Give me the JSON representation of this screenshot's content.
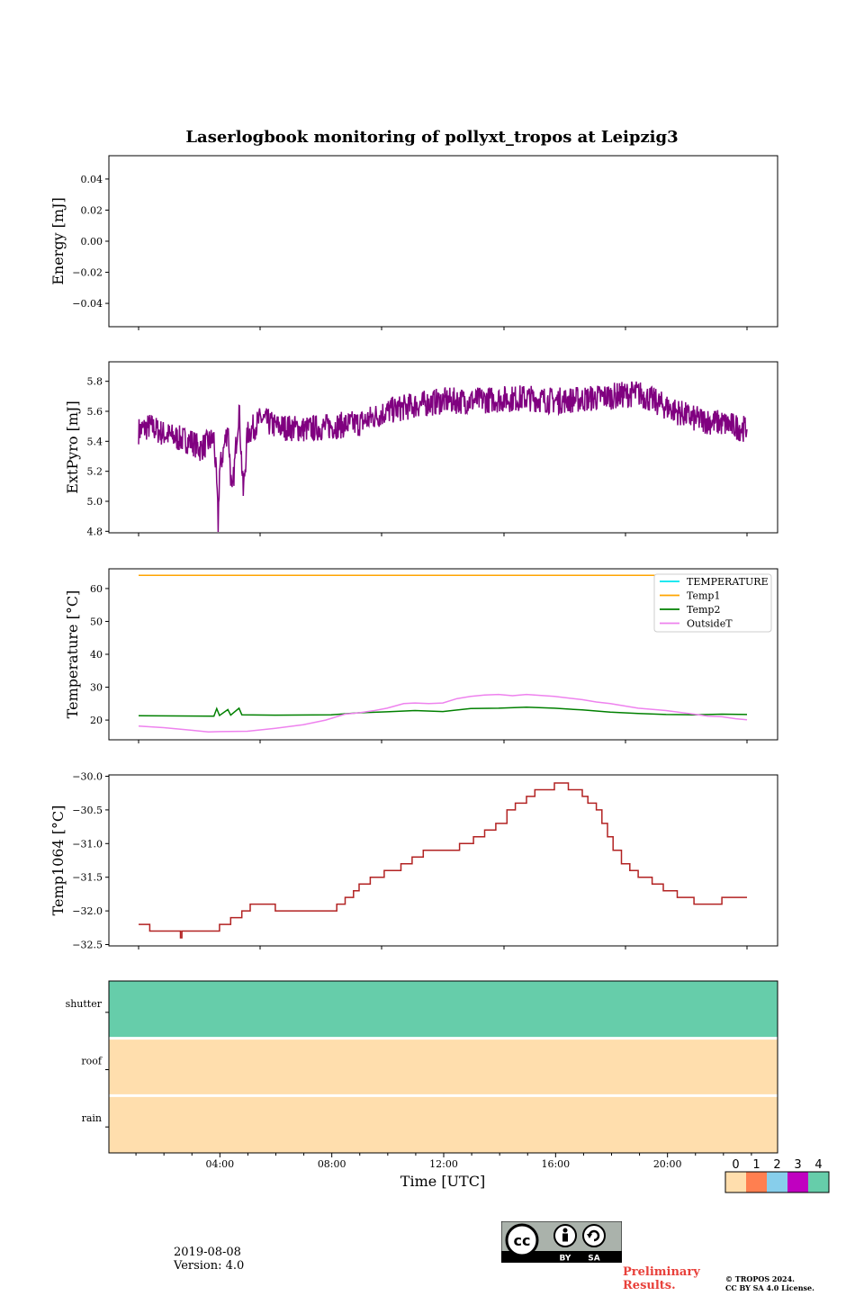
{
  "chart_data": {
    "type": "line",
    "title": "Laserlogbook monitoring of pollyxt_tropos at Leipzig3",
    "xlabel": "Time [UTC]",
    "x_ticks": [
      "04:00",
      "08:00",
      "12:00",
      "16:00",
      "20:00"
    ],
    "x_range_hours": [
      0,
      24
    ],
    "panels": [
      {
        "name": "energy",
        "ylabel": "Energy [mJ]",
        "ylim": [
          -0.055,
          0.055
        ],
        "yticks": [
          "0.04",
          "0.02",
          "0.00",
          "−0.02",
          "−0.04"
        ],
        "ytick_values": [
          0.04,
          0.02,
          0.0,
          -0.02,
          -0.04
        ],
        "series": []
      },
      {
        "name": "extpyro",
        "ylabel": "ExtPyro [mJ]",
        "ylim": [
          4.79,
          5.93
        ],
        "yticks": [
          "5.8",
          "5.6",
          "5.4",
          "5.2",
          "5.0",
          "4.8"
        ],
        "ytick_values": [
          5.8,
          5.6,
          5.4,
          5.2,
          5.0,
          4.8
        ],
        "series": [
          {
            "name": "ExtPyro",
            "color": "#800080",
            "points": [
              [
                1.1,
                5.47
              ],
              [
                1.5,
                5.5
              ],
              [
                2.0,
                5.45
              ],
              [
                2.5,
                5.42
              ],
              [
                3.0,
                5.4
              ],
              [
                3.3,
                5.35
              ],
              [
                3.8,
                5.42
              ],
              [
                3.9,
                5.1
              ],
              [
                3.95,
                4.85
              ],
              [
                4.0,
                5.2
              ],
              [
                4.3,
                5.5
              ],
              [
                4.45,
                5.02
              ],
              [
                4.6,
                5.4
              ],
              [
                4.7,
                5.62
              ],
              [
                4.85,
                5.05
              ],
              [
                5.0,
                5.45
              ],
              [
                5.5,
                5.55
              ],
              [
                6.0,
                5.5
              ],
              [
                7.0,
                5.48
              ],
              [
                8.0,
                5.5
              ],
              [
                9.0,
                5.52
              ],
              [
                10.0,
                5.6
              ],
              [
                11.0,
                5.64
              ],
              [
                12.0,
                5.67
              ],
              [
                13.0,
                5.67
              ],
              [
                14.0,
                5.68
              ],
              [
                15.0,
                5.69
              ],
              [
                16.0,
                5.67
              ],
              [
                17.0,
                5.68
              ],
              [
                18.0,
                5.7
              ],
              [
                19.0,
                5.72
              ],
              [
                20.0,
                5.63
              ],
              [
                21.0,
                5.55
              ],
              [
                22.0,
                5.52
              ],
              [
                22.9,
                5.48
              ]
            ]
          }
        ]
      },
      {
        "name": "temperature",
        "ylabel": "Temperature [°C]",
        "ylim": [
          14,
          66
        ],
        "yticks": [
          "60",
          "50",
          "40",
          "30",
          "20"
        ],
        "ytick_values": [
          60,
          50,
          40,
          30,
          20
        ],
        "legend": [
          "TEMPERATURE",
          "Temp1",
          "Temp2",
          "OutsideT"
        ],
        "legend_colors": [
          "#00e5ee",
          "#ffa500",
          "#008000",
          "#ee82ee"
        ],
        "series": [
          {
            "name": "TEMPERATURE",
            "color": "#00e5ee",
            "points": []
          },
          {
            "name": "Temp1",
            "color": "#ffa500",
            "points": [
              [
                1.1,
                64
              ],
              [
                22.9,
                64
              ]
            ]
          },
          {
            "name": "Temp2",
            "color": "#008000",
            "points": [
              [
                1.1,
                21.3
              ],
              [
                3.8,
                21.2
              ],
              [
                3.9,
                23.5
              ],
              [
                4.0,
                21.4
              ],
              [
                4.3,
                23.2
              ],
              [
                4.4,
                21.5
              ],
              [
                4.7,
                23.6
              ],
              [
                4.8,
                21.6
              ],
              [
                6.0,
                21.5
              ],
              [
                8.0,
                21.6
              ],
              [
                9.0,
                22.2
              ],
              [
                10.0,
                22.5
              ],
              [
                11.0,
                22.9
              ],
              [
                12.0,
                22.6
              ],
              [
                13.0,
                23.5
              ],
              [
                14.0,
                23.6
              ],
              [
                15.0,
                23.9
              ],
              [
                16.0,
                23.6
              ],
              [
                17.0,
                23.1
              ],
              [
                18.0,
                22.4
              ],
              [
                19.0,
                22.0
              ],
              [
                20.0,
                21.7
              ],
              [
                21.0,
                21.6
              ],
              [
                22.0,
                21.8
              ],
              [
                22.9,
                21.7
              ]
            ]
          },
          {
            "name": "OutsideT",
            "color": "#ee82ee",
            "points": [
              [
                1.1,
                18.2
              ],
              [
                2.0,
                17.7
              ],
              [
                3.0,
                16.9
              ],
              [
                3.6,
                16.4
              ],
              [
                4.0,
                16.5
              ],
              [
                5.0,
                16.6
              ],
              [
                6.0,
                17.5
              ],
              [
                7.0,
                18.6
              ],
              [
                7.8,
                20.0
              ],
              [
                8.5,
                21.8
              ],
              [
                9.0,
                22.2
              ],
              [
                9.5,
                22.8
              ],
              [
                10.0,
                23.6
              ],
              [
                10.6,
                25.0
              ],
              [
                11.0,
                25.2
              ],
              [
                11.5,
                25.0
              ],
              [
                12.0,
                25.2
              ],
              [
                12.5,
                26.5
              ],
              [
                13.0,
                27.2
              ],
              [
                13.5,
                27.6
              ],
              [
                14.0,
                27.8
              ],
              [
                14.5,
                27.4
              ],
              [
                15.0,
                27.8
              ],
              [
                16.0,
                27.2
              ],
              [
                17.0,
                26.2
              ],
              [
                17.5,
                25.5
              ],
              [
                18.0,
                25.0
              ],
              [
                19.0,
                23.6
              ],
              [
                20.0,
                22.9
              ],
              [
                21.0,
                21.8
              ],
              [
                21.5,
                21.2
              ],
              [
                22.0,
                21.0
              ],
              [
                22.5,
                20.4
              ],
              [
                22.9,
                20.1
              ]
            ]
          }
        ]
      },
      {
        "name": "temp1064",
        "ylabel": "Temp1064 [°C]",
        "ylim": [
          -32.52,
          -29.98
        ],
        "yticks": [
          "−30.0",
          "−30.5",
          "−31.0",
          "−31.5",
          "−32.0",
          "−32.5"
        ],
        "ytick_values": [
          -30.0,
          -30.5,
          -31.0,
          -31.5,
          -32.0,
          -32.5
        ],
        "series": [
          {
            "name": "Temp1064",
            "color": "#b22222",
            "step": true,
            "points": [
              [
                1.1,
                -32.2
              ],
              [
                1.5,
                -32.2
              ],
              [
                1.5,
                -32.3
              ],
              [
                2.1,
                -32.3
              ],
              [
                2.6,
                -32.3
              ],
              [
                2.6,
                -32.4
              ],
              [
                2.65,
                -32.3
              ],
              [
                4.0,
                -32.3
              ],
              [
                4.0,
                -32.2
              ],
              [
                4.3,
                -32.2
              ],
              [
                4.4,
                -32.1
              ],
              [
                4.8,
                -32.1
              ],
              [
                4.8,
                -32.0
              ],
              [
                5.1,
                -32.0
              ],
              [
                5.1,
                -31.9
              ],
              [
                6.0,
                -31.9
              ],
              [
                6.0,
                -32.0
              ],
              [
                8.0,
                -32.0
              ],
              [
                8.2,
                -31.9
              ],
              [
                8.5,
                -31.8
              ],
              [
                8.8,
                -31.7
              ],
              [
                9.0,
                -31.6
              ],
              [
                9.4,
                -31.5
              ],
              [
                9.9,
                -31.4
              ],
              [
                10.5,
                -31.3
              ],
              [
                10.9,
                -31.2
              ],
              [
                11.3,
                -31.1
              ],
              [
                12.3,
                -31.1
              ],
              [
                12.6,
                -31.0
              ],
              [
                13.1,
                -30.9
              ],
              [
                13.5,
                -30.8
              ],
              [
                13.9,
                -30.7
              ],
              [
                14.3,
                -30.5
              ],
              [
                14.6,
                -30.4
              ],
              [
                15.0,
                -30.3
              ],
              [
                15.3,
                -30.2
              ],
              [
                15.9,
                -30.2
              ],
              [
                16.0,
                -30.1
              ],
              [
                16.4,
                -30.1
              ],
              [
                16.5,
                -30.2
              ],
              [
                16.9,
                -30.2
              ],
              [
                17.0,
                -30.3
              ],
              [
                17.2,
                -30.4
              ],
              [
                17.5,
                -30.5
              ],
              [
                17.7,
                -30.7
              ],
              [
                17.9,
                -30.9
              ],
              [
                18.1,
                -31.1
              ],
              [
                18.4,
                -31.3
              ],
              [
                18.7,
                -31.4
              ],
              [
                19.0,
                -31.5
              ],
              [
                19.5,
                -31.6
              ],
              [
                19.9,
                -31.7
              ],
              [
                20.4,
                -31.8
              ],
              [
                21.0,
                -31.9
              ],
              [
                21.9,
                -31.9
              ],
              [
                22.0,
                -31.8
              ],
              [
                22.9,
                -31.8
              ]
            ]
          }
        ]
      },
      {
        "name": "status",
        "ylabel": "",
        "type": "heatmap",
        "rows": [
          "shutter",
          "roof",
          "rain"
        ],
        "row_values": [
          4,
          0,
          0
        ]
      }
    ],
    "colorbar": {
      "labels": [
        "0",
        "1",
        "2",
        "3",
        "4"
      ],
      "colors": [
        "#ffdead",
        "#ff7f50",
        "#87ceeb",
        "#c000c0",
        "#66cdaa"
      ]
    }
  },
  "footer": {
    "date": "2019-08-08",
    "version": "Version: 4.0",
    "preliminary_line1": "Preliminary",
    "preliminary_line2": "Results.",
    "copyright_line1": "© TROPOS 2024.",
    "copyright_line2": "CC BY SA 4.0 License.",
    "cc_by": "BY",
    "cc_sa": "SA"
  }
}
